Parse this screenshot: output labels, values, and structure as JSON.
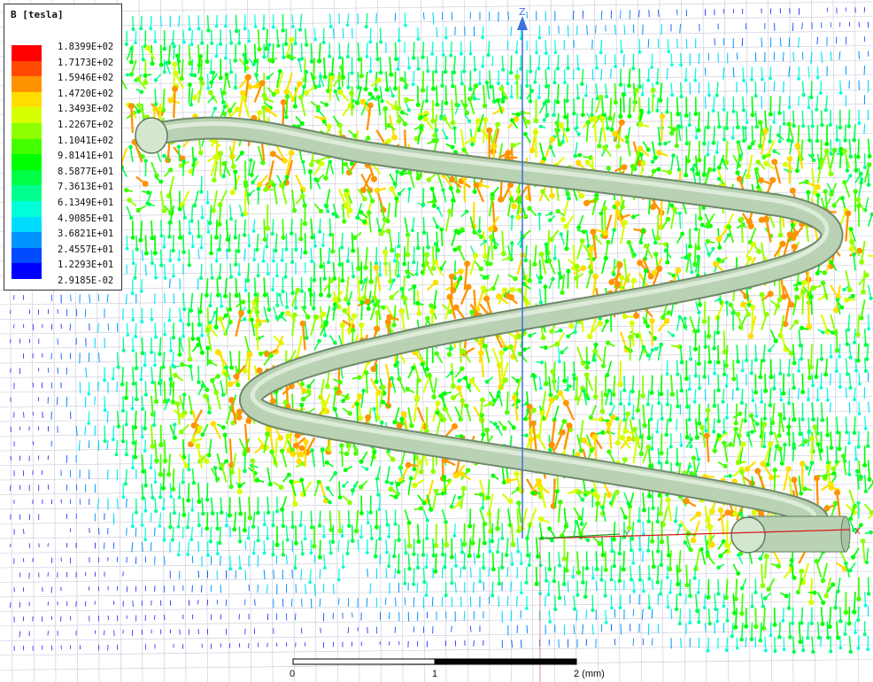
{
  "legend": {
    "title": "B [tesla]",
    "entries": [
      {
        "label": "1.8399E+02",
        "color": "#ff0000"
      },
      {
        "label": "1.7173E+02",
        "color": "#ff4a00"
      },
      {
        "label": "1.5946E+02",
        "color": "#ff9300"
      },
      {
        "label": "1.4720E+02",
        "color": "#ffdd00"
      },
      {
        "label": "1.3493E+02",
        "color": "#d8ff00"
      },
      {
        "label": "1.2267E+02",
        "color": "#8eff00"
      },
      {
        "label": "1.1041E+02",
        "color": "#44ff00"
      },
      {
        "label": "9.8141E+01",
        "color": "#00ff00"
      },
      {
        "label": "8.5877E+01",
        "color": "#00ff44"
      },
      {
        "label": "7.3613E+01",
        "color": "#00ff8e"
      },
      {
        "label": "6.1349E+01",
        "color": "#00ffd8"
      },
      {
        "label": "4.9085E+01",
        "color": "#00dcff"
      },
      {
        "label": "3.6821E+01",
        "color": "#0093ff"
      },
      {
        "label": "2.4557E+01",
        "color": "#004aff"
      },
      {
        "label": "1.2293E+01",
        "color": "#0000ff"
      },
      {
        "label": "2.9185E-02",
        "color": "#0000ff"
      }
    ]
  },
  "axes": {
    "z_label": "Z",
    "y_label": "Y",
    "x_label": "X",
    "z_color": "#3d6fe0",
    "y_color": "#1aa51a",
    "x_color": "#d21a1a"
  },
  "scale_bar": {
    "ticks": [
      "0",
      "1",
      "2 (mm)"
    ]
  },
  "model": {
    "coil_color": "#b9d2b3",
    "grid_color": "#c8c8d8"
  }
}
